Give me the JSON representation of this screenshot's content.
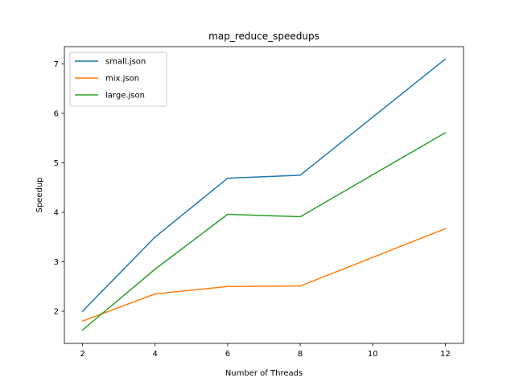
{
  "chart_data": {
    "type": "line",
    "title": "map_reduce_speedups",
    "xlabel": "Number of Threads",
    "ylabel": "Speedup",
    "x": [
      2,
      4,
      6,
      8,
      12
    ],
    "xlim": [
      1.5,
      12.5
    ],
    "ylim": [
      1.35,
      7.35
    ],
    "xticks": [
      2,
      4,
      6,
      8,
      10,
      12
    ],
    "yticks": [
      2,
      3,
      4,
      5,
      6,
      7
    ],
    "grid": false,
    "legend_position": "top-left",
    "series": [
      {
        "name": "small.json",
        "color": "#1f77b4",
        "values": [
          2.0,
          3.5,
          4.69,
          4.75,
          7.1
        ]
      },
      {
        "name": "mix.json",
        "color": "#ff7f0e",
        "values": [
          1.8,
          2.35,
          2.5,
          2.51,
          3.67
        ]
      },
      {
        "name": "large.json",
        "color": "#2ca02c",
        "values": [
          1.62,
          2.85,
          3.96,
          3.91,
          5.61
        ]
      }
    ]
  }
}
